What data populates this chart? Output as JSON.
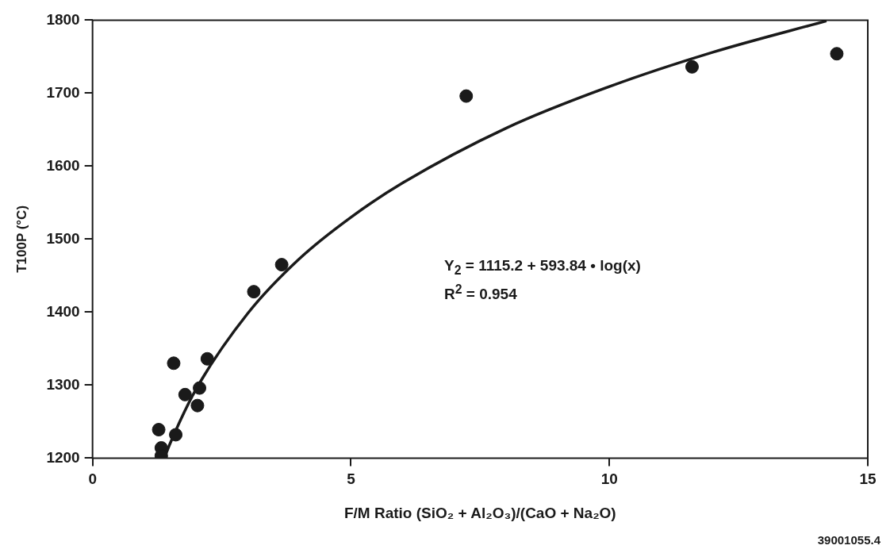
{
  "chart_data": {
    "type": "scatter",
    "xlabel": "F/M Ratio (SiO₂ + Al₂O₃)/(CaO + Na₂O)",
    "ylabel": "T100P (°C)",
    "xlim": [
      0,
      15
    ],
    "xticks": [
      0,
      5,
      10,
      15
    ],
    "ylim": [
      1200,
      1800
    ],
    "yticks": [
      1200,
      1300,
      1400,
      1500,
      1600,
      1700,
      1800
    ],
    "marker": "circle",
    "series": [
      {
        "color": "#1a1a1a",
        "x": [
          1.28,
          1.33,
          1.33,
          1.57,
          1.61,
          1.79,
          2.03,
          2.07,
          2.22,
          3.12,
          3.66,
          7.23,
          11.6,
          14.4
        ],
        "values": [
          1239,
          1214,
          1203,
          1330,
          1232,
          1287,
          1272,
          1296,
          1336,
          1428,
          1465,
          1696,
          1736,
          1754
        ]
      },
      {
        "type": "line",
        "marker": "none",
        "color": "#1a1a1a",
        "x": [
          1.39,
          1.5,
          2,
          3,
          4,
          5,
          6,
          8,
          10,
          12,
          14.2
        ],
        "values": [
          1200,
          1220,
          1294,
          1398,
          1473,
          1530,
          1577,
          1652,
          1709,
          1756,
          1799
        ]
      }
    ],
    "annotations": [
      "Y$_{2}$ = 1115.2 + 593.84 • log(x)",
      "R$^{2}$ = 0.954",
      "39001055.4"
    ]
  }
}
